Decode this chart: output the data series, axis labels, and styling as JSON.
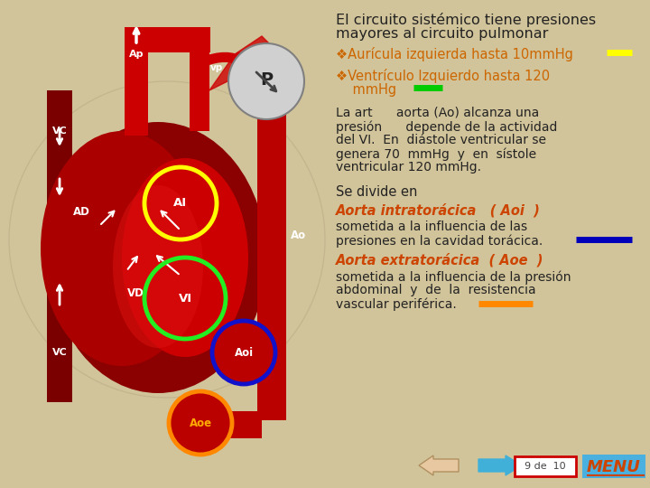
{
  "bg_color": "#d2c49a",
  "title_line1": "El circuito sistémico tiene presiones",
  "title_line2": "mayores al circuito pulmonar",
  "title_color": "#222222",
  "title_fontsize": 11.5,
  "bullet1": "❖Aurícula izquierda hasta 10mmHg",
  "bullet1_color": "#cc6600",
  "bullet1_bar_color": "#ffff00",
  "bullet2_line1": "❖Ventrículo Izquierdo hasta 120",
  "bullet2_line2": "    mmHg",
  "bullet2_color": "#cc6600",
  "bullet2_bar_color": "#00cc00",
  "para1_line1": "La art      aorta (Ao) alcanza una",
  "para1_line2": "presión      depende de la actividad",
  "para1_line3": "del VI.  En  diástole ventricular se",
  "para1_line4": "genera 70  mmHg  y  en  sístole",
  "para1_line5": "ventricular 120 mmHg.",
  "para1_color": "#222222",
  "se_divide": "Se divide en",
  "aoi_title": "Aorta intratorácica   ( Aoi  )",
  "aoi_title_color": "#cc4400",
  "aoi_body1": "sometida a la influencia de las",
  "aoi_body2": "presiones en la cavidad torácica.",
  "aoi_body_color": "#222222",
  "aoi_bar_color": "#0000bb",
  "aoe_title": "Aorta extratorácica  ( Aoe  )",
  "aoe_title_color": "#cc4400",
  "aoe_body1": "sometida a la influencia de la presión",
  "aoe_body2": "abdominal  y  de  la  resistencia",
  "aoe_body3": "vascular periférica.",
  "aoe_body_color": "#222222",
  "aoe_bar_color": "#ff8800",
  "nav_text": "9 de  10",
  "menu_text": "MENU",
  "menu_bg": "#4ab0e0",
  "menu_color": "#cc4400",
  "heart_dark": "#8b0000",
  "heart_red": "#cc0000",
  "heart_mid": "#aa0000",
  "vc_color": "#7a0000",
  "aorta_color": "#bb0000"
}
